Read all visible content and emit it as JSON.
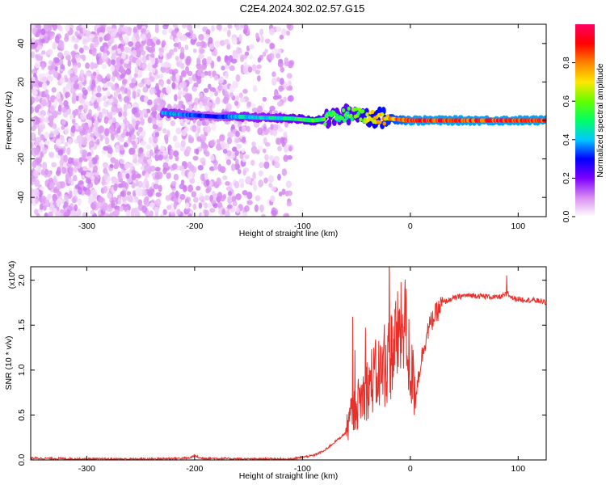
{
  "title": "C2E4.2024.302.02.57.G15",
  "chart_data": [
    {
      "type": "heatmap",
      "title": "",
      "xlabel": "Height of straight line (km)",
      "ylabel": "Frequency (Hz)",
      "xlim": [
        -352,
        126
      ],
      "ylim": [
        -50,
        50
      ],
      "xticks": [
        -300,
        -200,
        -100,
        0,
        100
      ],
      "yticks": [
        -40,
        -20,
        0,
        20,
        40
      ],
      "grid": false,
      "colorbar": {
        "label": "Normalized spectral amplitude",
        "range": [
          0,
          1
        ],
        "ticks": [
          "0.0",
          "0.2",
          "0.4",
          "0.6",
          "0.8"
        ],
        "colors": [
          "#ffffff",
          "#d88cf0",
          "#7d00ff",
          "#0000ff",
          "#00c8ff",
          "#00ff64",
          "#64ff00",
          "#ffe600",
          "#ff8200",
          "#ff0000",
          "#ff0064"
        ]
      },
      "noise_region": {
        "x": [
          -352,
          -110
        ],
        "y": [
          -50,
          50
        ],
        "amplitude": [
          0.02,
          0.12
        ]
      },
      "ridge": [
        {
          "x": -230,
          "y": 4,
          "amp": 0.45
        },
        {
          "x": -210,
          "y": 3,
          "amp": 0.4
        },
        {
          "x": -180,
          "y": 2,
          "amp": 0.3
        },
        {
          "x": -160,
          "y": 2,
          "amp": 0.45
        },
        {
          "x": -140,
          "y": 1.5,
          "amp": 0.45
        },
        {
          "x": -110,
          "y": 1,
          "amp": 0.5
        },
        {
          "x": -90,
          "y": 0,
          "amp": 0.6
        },
        {
          "x": -75,
          "y": 1,
          "amp": 0.55
        },
        {
          "x": -60,
          "y": 3,
          "amp": 0.55
        },
        {
          "x": -50,
          "y": 4,
          "amp": 0.6
        },
        {
          "x": -40,
          "y": 2,
          "amp": 0.7
        },
        {
          "x": -20,
          "y": 1,
          "amp": 0.8
        },
        {
          "x": 0,
          "y": 0,
          "amp": 0.95
        },
        {
          "x": 126,
          "y": 0,
          "amp": 0.95
        }
      ]
    },
    {
      "type": "line",
      "title": "",
      "xlabel": "Height of straight line (km)",
      "ylabel": "SNR (10 * v/v)",
      "yscale_label": "(x10^4)",
      "xlim": [
        -352,
        126
      ],
      "ylim": [
        0,
        2.15
      ],
      "xticks": [
        -300,
        -200,
        -100,
        0,
        100
      ],
      "yticks": [
        0.0,
        0.5,
        1.0,
        1.5,
        2.0
      ],
      "ytick_labels": [
        "0.0",
        "0.5",
        "1.0",
        "1.5",
        "2.0"
      ],
      "color": "#e8302a",
      "series": [
        {
          "x": [
            -352,
            -300,
            -250,
            -205,
            -200,
            -195,
            -150,
            -110,
            -100,
            -90,
            -80,
            -70,
            -60,
            -55,
            -50,
            -45,
            -40,
            -35,
            -30,
            -25,
            -20,
            -15,
            -10,
            -5,
            0,
            5,
            10,
            15,
            20,
            25,
            30,
            40,
            50,
            60,
            70,
            80,
            85,
            90,
            95,
            100,
            110,
            120,
            126
          ],
          "values": [
            0.02,
            0.01,
            0.01,
            0.02,
            0.05,
            0.02,
            0.01,
            0.01,
            0.03,
            0.05,
            0.1,
            0.2,
            0.3,
            0.5,
            0.6,
            0.7,
            0.8,
            0.9,
            0.95,
            1.0,
            1.1,
            1.3,
            1.4,
            1.55,
            1.0,
            0.75,
            1.1,
            1.4,
            1.55,
            1.65,
            1.75,
            1.8,
            1.83,
            1.83,
            1.82,
            1.81,
            1.82,
            1.85,
            1.8,
            1.79,
            1.78,
            1.77,
            1.75
          ]
        }
      ]
    }
  ]
}
